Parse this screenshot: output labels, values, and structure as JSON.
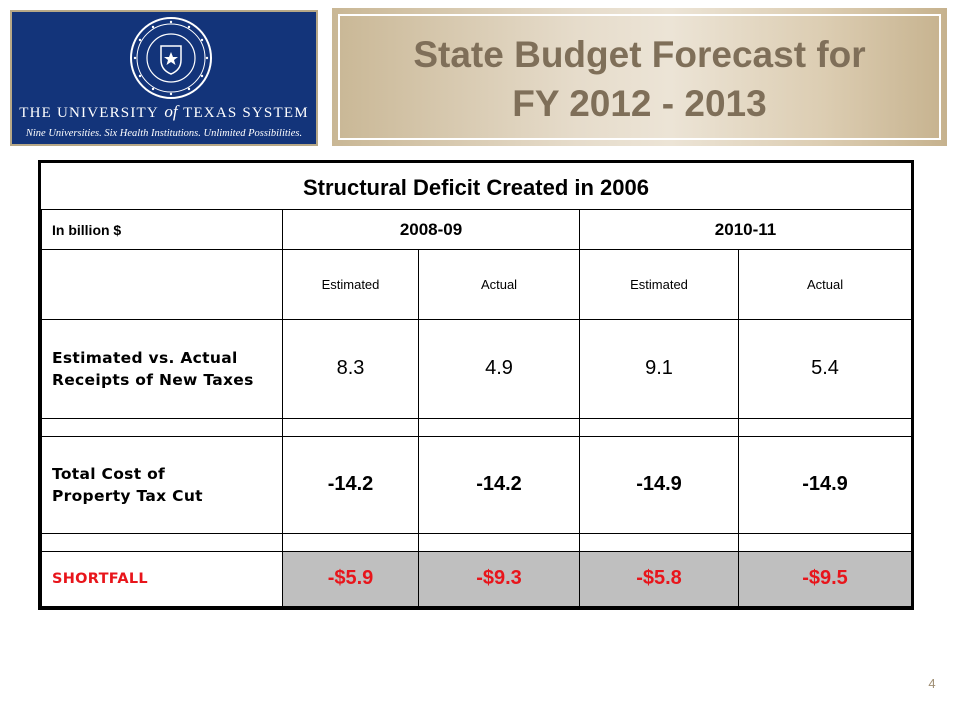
{
  "logo": {
    "org_prefix": "The University",
    "org_of": "of",
    "org_suffix": "Texas System",
    "tagline": "Nine Universities. Six Health Institutions. Unlimited Possibilities.",
    "colors": {
      "background": "#13347a",
      "text": "#ffffff"
    }
  },
  "header": {
    "title_line1": "State Budget Forecast for",
    "title_line2": "FY 2012 - 2013",
    "colors": {
      "title": "#7f6f59",
      "banner": "#e6dccb"
    }
  },
  "table": {
    "caption": "Structural Deficit Created in 2006",
    "unit_label": "In billion $",
    "periods": [
      "2008-09",
      "2010-11"
    ],
    "subheaders": [
      "Estimated",
      "Actual",
      "Estimated",
      "Actual"
    ],
    "rows": [
      {
        "label": "Estimated vs. Actual Receipts of New Taxes",
        "values": [
          "8.3",
          "4.9",
          "9.1",
          "5.4"
        ]
      },
      {
        "label": "Total Cost of Property Tax Cut",
        "values": [
          "-14.2",
          "-14.2",
          "-14.9",
          "-14.9"
        ]
      },
      {
        "label": "SHORTFALL",
        "values": [
          "-$5.9",
          "-$9.3",
          "-$5.8",
          "-$9.5"
        ]
      }
    ],
    "colors": {
      "shortfall": "#e8151b",
      "shortfall_fill": "#bfbfbf"
    }
  },
  "footer": {
    "page_number": "4"
  }
}
